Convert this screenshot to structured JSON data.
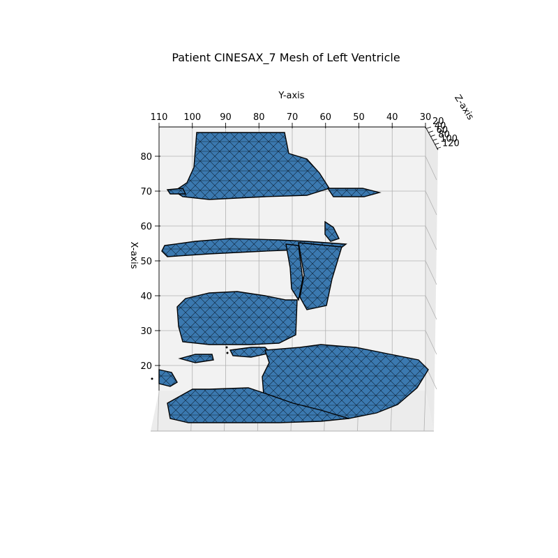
{
  "chart_data": {
    "type": "3d-mesh",
    "title": "Patient CINESAX_7 Mesh of Left Ventricle",
    "xlabel": "X-axis",
    "ylabel": "Y-axis",
    "zlabel": "Z-axis",
    "y_ticks": [
      "110",
      "100",
      "90",
      "80",
      "70",
      "60",
      "50",
      "40",
      "30"
    ],
    "x_ticks": [
      "80",
      "70",
      "60",
      "50",
      "40",
      "30",
      "20"
    ],
    "z_ticks": [
      "20",
      "40",
      "60",
      "80",
      "100",
      "120"
    ],
    "ylim": [
      30,
      110
    ],
    "xlim": [
      15,
      85
    ],
    "zlim": [
      20,
      120
    ],
    "grid": true,
    "mesh_color": "#3b79b0",
    "edge_color": "#000000"
  }
}
